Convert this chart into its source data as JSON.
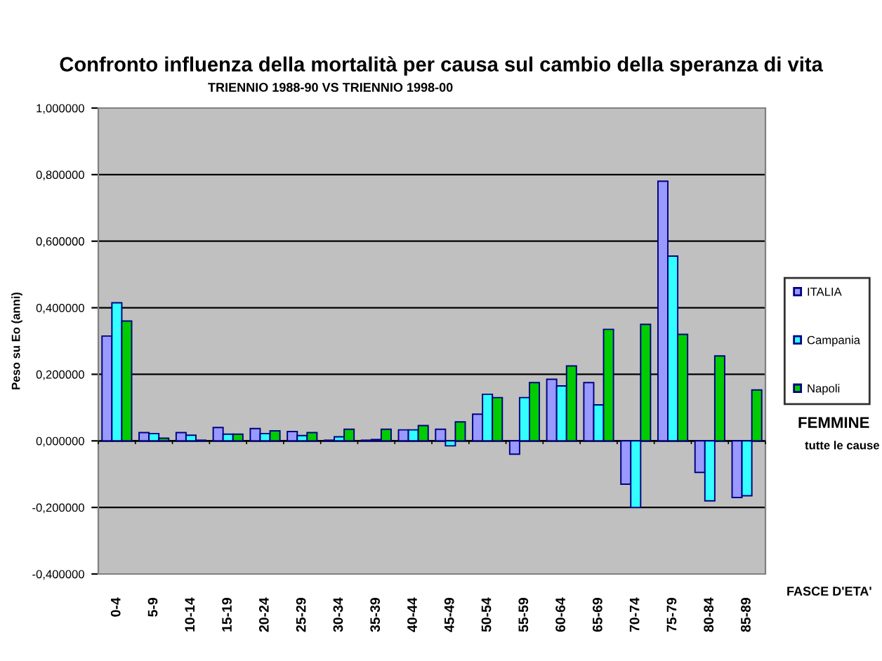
{
  "chart_data": {
    "type": "bar",
    "title": "Confronto influenza della mortalità per causa sul cambio della speranza di vita",
    "subtitle": "TRIENNIO 1988-90 VS TRIENNIO 1998-00",
    "xlabel": "FASCE D'ETA'",
    "ylabel": "Peso su Eo (anni)",
    "annotations": [
      "FEMMINE",
      "tutte le cause"
    ],
    "categories": [
      "0-4",
      "5-9",
      "10-14",
      "15-19",
      "20-24",
      "25-29",
      "30-34",
      "35-39",
      "40-44",
      "45-49",
      "50-54",
      "55-59",
      "60-64",
      "65-69",
      "70-74",
      "75-79",
      "80-84",
      "85-89"
    ],
    "series": [
      {
        "name": "ITALIA",
        "color": "#9999ff",
        "values": [
          0.315,
          0.025,
          0.025,
          0.04,
          0.037,
          0.028,
          0.002,
          0.002,
          0.033,
          0.035,
          0.08,
          -0.04,
          0.185,
          0.175,
          -0.13,
          0.78,
          -0.095,
          -0.17
        ]
      },
      {
        "name": "Campania",
        "color": "#33ffff",
        "values": [
          0.415,
          0.022,
          0.017,
          0.02,
          0.022,
          0.016,
          0.012,
          0.004,
          0.033,
          -0.015,
          0.14,
          0.13,
          0.165,
          0.108,
          -0.2,
          0.555,
          -0.18,
          -0.165
        ]
      },
      {
        "name": "Napoli",
        "color": "#00cc00",
        "values": [
          0.36,
          0.008,
          0.002,
          0.02,
          0.03,
          0.025,
          0.035,
          0.035,
          0.046,
          0.057,
          0.13,
          0.175,
          0.225,
          0.335,
          0.35,
          0.32,
          0.255,
          0.153
        ]
      }
    ],
    "ylim": [
      -0.4,
      1.0
    ],
    "yticks": [
      {
        "value": -0.4,
        "label": "-0,400000"
      },
      {
        "value": -0.2,
        "label": "-0,200000"
      },
      {
        "value": 0,
        "label": "0,000000"
      },
      {
        "value": 0.2,
        "label": "0,200000"
      },
      {
        "value": 0.4,
        "label": "0,400000"
      },
      {
        "value": 0.6,
        "label": "0,600000"
      },
      {
        "value": 0.8,
        "label": "0,800000"
      },
      {
        "value": 1.0,
        "label": "1,000000"
      }
    ],
    "grid": "y",
    "legend": "right"
  }
}
